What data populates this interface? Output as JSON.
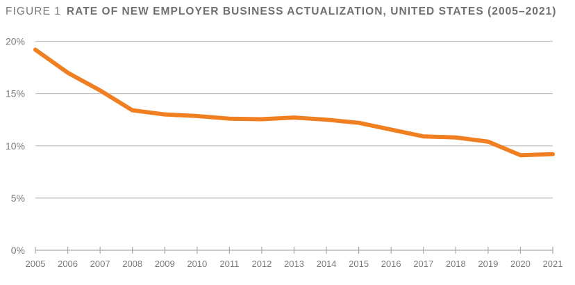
{
  "title": {
    "figure_label": "FIGURE 1",
    "text": "RATE OF NEW EMPLOYER BUSINESS ACTUALIZATION, UNITED STATES (2005–2021)"
  },
  "colors": {
    "line": "#F07F22",
    "grid": "#c4c4c4",
    "axis": "#a9a9a9",
    "text": "#7a7a7e"
  },
  "chart_data": {
    "type": "line",
    "title": "RATE OF NEW EMPLOYER BUSINESS ACTUALIZATION, UNITED STATES (2005–2021)",
    "xlabel": "",
    "ylabel": "",
    "x": [
      "2005",
      "2006",
      "2007",
      "2008",
      "2009",
      "2010",
      "2011",
      "2012",
      "2013",
      "2014",
      "2015",
      "2016",
      "2017",
      "2018",
      "2019",
      "2020",
      "2021"
    ],
    "series": [
      {
        "name": "Rate of new employer business actualization",
        "values": [
          19.2,
          17.0,
          15.3,
          13.4,
          13.0,
          12.85,
          12.6,
          12.55,
          12.7,
          12.5,
          12.2,
          11.55,
          10.9,
          10.8,
          10.4,
          9.1,
          9.2
        ]
      }
    ],
    "ylim": [
      0,
      20
    ],
    "yticks": [
      0,
      5,
      10,
      15,
      20
    ],
    "ytick_labels": [
      "0%",
      "5%",
      "10%",
      "15%",
      "20%"
    ],
    "grid": true,
    "legend": "none"
  }
}
